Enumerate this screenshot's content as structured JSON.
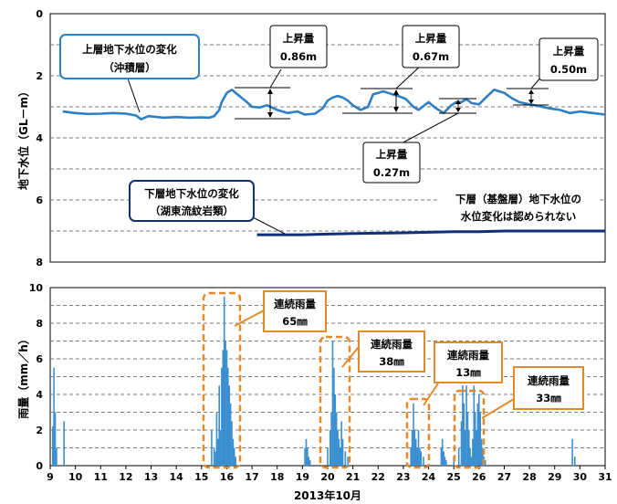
{
  "chart_data": [
    {
      "type": "line",
      "ylabel": "地下水位（GL－m）",
      "ylim": [
        8,
        0
      ],
      "y_ticks": [
        "0",
        "2",
        "4",
        "6",
        "8"
      ],
      "y_inverted": true,
      "grid": "dashed horizontal",
      "series": [
        {
          "name": "上層地下水位の変化（沖積層）",
          "color": "#2e7fc4",
          "x": [
            9.5,
            10.0,
            10.5,
            11.0,
            11.5,
            12.0,
            12.4,
            12.6,
            12.9,
            13.5,
            14.0,
            14.5,
            15.0,
            15.3,
            15.5,
            15.7,
            15.8,
            16.0,
            16.2,
            16.5,
            16.8,
            17.0,
            17.3,
            17.6,
            18.0,
            18.4,
            18.8,
            19.1,
            19.5,
            19.8,
            20.0,
            20.2,
            20.4,
            20.6,
            20.8,
            21.0,
            21.3,
            21.6,
            21.8,
            22.0,
            22.2,
            22.5,
            22.8,
            23.1,
            23.4,
            23.6,
            24.0,
            24.3,
            24.6,
            24.9,
            25.1,
            25.3,
            25.5,
            25.7,
            26.0,
            26.3,
            26.6,
            27.0,
            27.3,
            27.6,
            28.0,
            28.4,
            28.8,
            29.2,
            29.6,
            30.0,
            30.5,
            31.0
          ],
          "values": [
            3.15,
            3.2,
            3.23,
            3.22,
            3.2,
            3.22,
            3.28,
            3.4,
            3.3,
            3.35,
            3.33,
            3.35,
            3.34,
            3.35,
            3.3,
            3.1,
            2.85,
            2.55,
            2.45,
            2.65,
            2.85,
            3.0,
            3.02,
            2.95,
            3.1,
            3.2,
            3.15,
            3.25,
            3.22,
            3.05,
            2.8,
            2.7,
            2.65,
            2.7,
            2.8,
            2.95,
            3.1,
            3.0,
            2.6,
            2.55,
            2.5,
            2.58,
            2.65,
            2.75,
            3.0,
            3.1,
            2.85,
            3.05,
            3.2,
            2.95,
            2.85,
            2.85,
            2.75,
            2.88,
            2.92,
            2.68,
            2.45,
            2.55,
            2.72,
            2.85,
            2.92,
            2.98,
            3.05,
            3.1,
            3.2,
            3.15,
            3.2,
            3.25
          ]
        },
        {
          "name": "下層地下水位の変化（湖東流紋岩類）",
          "color": "#0f2f78",
          "x": [
            17.2,
            18.0,
            19.0,
            20.0,
            21.0,
            22.0,
            23.0,
            24.0,
            25.0,
            26.0,
            27.0,
            28.0,
            29.0,
            30.0,
            31.0
          ],
          "values": [
            7.12,
            7.12,
            7.12,
            7.1,
            7.08,
            7.07,
            7.06,
            7.04,
            7.02,
            7.02,
            7.0,
            7.0,
            7.0,
            7.0,
            7.0
          ]
        }
      ],
      "annotations": [
        {
          "label": "上昇量",
          "value": "0.86m"
        },
        {
          "label": "上昇量",
          "value": "0.67m"
        },
        {
          "label": "上昇量",
          "value": "0.50m"
        },
        {
          "label": "上昇量",
          "value": "0.27m"
        },
        {
          "label": "上層地下水位の変化",
          "value": "（沖積層）"
        },
        {
          "label": "下層地下水位の変化",
          "value": "（湖東流紋岩類）"
        },
        {
          "label": "下層（基盤層）地下水位の",
          "value": "水位変化は認められない"
        }
      ]
    },
    {
      "type": "bar",
      "ylabel": "雨量（mm／h）",
      "xlabel": "2013年10月",
      "ylim": [
        0,
        10
      ],
      "y_ticks": [
        "0",
        "2",
        "4",
        "6",
        "8",
        "10"
      ],
      "xlim": [
        9,
        31
      ],
      "x_ticks": [
        "9",
        "10",
        "11",
        "12",
        "13",
        "14",
        "15",
        "16",
        "17",
        "18",
        "19",
        "20",
        "21",
        "22",
        "23",
        "24",
        "25",
        "26",
        "27",
        "28",
        "29",
        "30",
        "31"
      ],
      "grid": "dashed horizontal",
      "color": "#3b8fd0",
      "x": [
        9.1,
        9.15,
        9.2,
        9.25,
        9.55,
        15.4,
        15.5,
        15.55,
        15.6,
        15.65,
        15.7,
        15.75,
        15.8,
        15.85,
        15.9,
        15.95,
        16.0,
        16.05,
        16.1,
        16.15,
        16.2,
        16.25,
        16.3,
        16.35,
        19.1,
        19.15,
        19.2,
        19.25,
        19.3,
        20.0,
        20.1,
        20.15,
        20.2,
        20.25,
        20.3,
        20.35,
        20.4,
        20.45,
        20.5,
        20.55,
        20.6,
        20.7,
        20.8,
        23.3,
        23.35,
        23.4,
        23.45,
        23.5,
        23.55,
        23.6,
        23.65,
        23.7,
        23.8,
        24.5,
        24.55,
        24.6,
        24.65,
        24.7,
        25.0,
        25.2,
        25.3,
        25.35,
        25.4,
        25.45,
        25.5,
        25.55,
        25.6,
        25.65,
        25.7,
        25.75,
        25.8,
        25.85,
        25.9,
        25.95,
        26.0,
        26.05,
        26.1,
        26.15,
        26.2,
        26.25,
        29.7,
        29.8
      ],
      "values": [
        2.2,
        5.5,
        3.0,
        1.0,
        2.5,
        2.0,
        1.0,
        0.8,
        3.0,
        1.5,
        4.5,
        2.0,
        5.5,
        6.5,
        9.5,
        7.0,
        6.5,
        5.5,
        4.5,
        3.5,
        2.5,
        1.5,
        1.0,
        0.5,
        1.0,
        1.5,
        1.0,
        0.5,
        0.3,
        1.0,
        2.0,
        3.0,
        7.0,
        5.5,
        4.0,
        3.0,
        2.0,
        1.5,
        1.0,
        2.5,
        1.5,
        0.8,
        0.5,
        1.0,
        2.0,
        3.5,
        2.0,
        1.5,
        1.0,
        2.0,
        1.0,
        0.8,
        0.5,
        1.0,
        1.5,
        0.8,
        0.5,
        0.3,
        0.5,
        1.0,
        2.5,
        4.5,
        3.5,
        2.0,
        4.5,
        3.0,
        2.0,
        1.0,
        0.5,
        1.5,
        4.5,
        3.0,
        2.0,
        3.5,
        4.0,
        3.0,
        1.5,
        1.0,
        0.5,
        0.3,
        1.5,
        0.5
      ],
      "annotations": [
        {
          "label": "連続雨量",
          "value": "65㎜"
        },
        {
          "label": "連続雨量",
          "value": "38㎜"
        },
        {
          "label": "連続雨量",
          "value": "13㎜"
        },
        {
          "label": "連続雨量",
          "value": "33㎜"
        }
      ]
    }
  ]
}
